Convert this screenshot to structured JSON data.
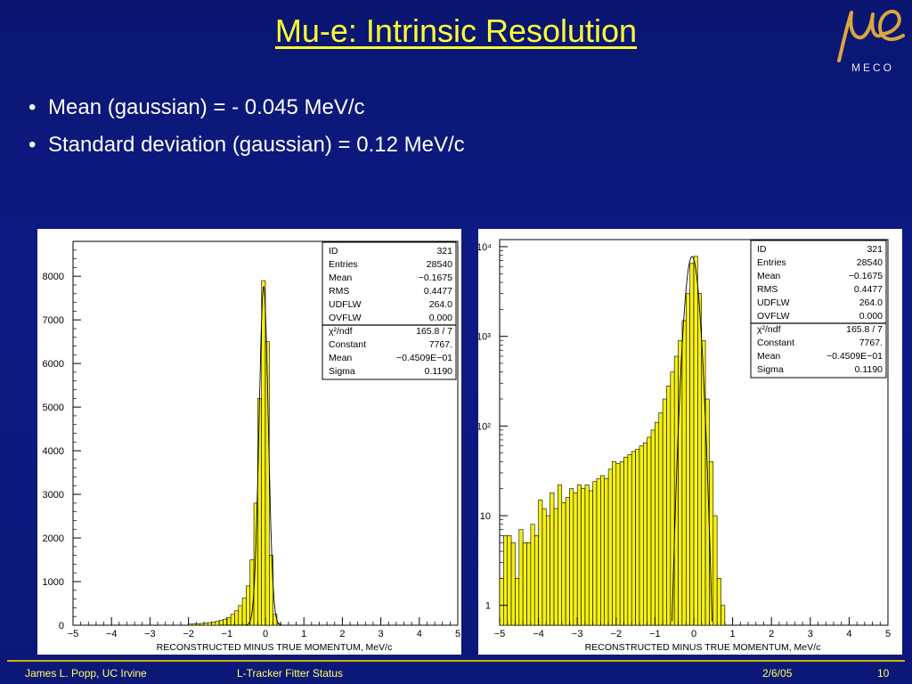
{
  "slide": {
    "title": "Mu-e: Intrinsic Resolution",
    "logo_caption": "MECO",
    "bullets": [
      "Mean (gaussian) = - 0.045 MeV/c",
      "Standard deviation (gaussian) = 0.12 MeV/c"
    ]
  },
  "footer": {
    "author": "James L. Popp, UC Irvine",
    "talk": "L-Tracker Fitter Status",
    "date": "2/6/05",
    "page": "10"
  },
  "colors": {
    "background": "#0c1878",
    "title": "#ffff33",
    "histogram_fill": "#f5f011",
    "footer_text": "#ffff66"
  },
  "stats_box": [
    [
      "ID",
      "321"
    ],
    [
      "Entries",
      "28540"
    ],
    [
      "Mean",
      "−0.1675"
    ],
    [
      "RMS",
      "0.4477"
    ],
    [
      "UDFLW",
      "264.0"
    ],
    [
      "OVFLW",
      "0.000"
    ],
    [
      "χ²/ndf",
      "165.8    /    7"
    ],
    [
      "Constant",
      "7767."
    ],
    [
      "Mean",
      "−0.4509E−01"
    ],
    [
      "Sigma",
      "0.1190"
    ]
  ],
  "chart_data": [
    {
      "type": "bar",
      "scale": "linear",
      "xlabel": "RECONSTRUCTED MINUS TRUE MOMENTUM,    MeV/c",
      "xlim": [
        -5,
        5
      ],
      "ylim": [
        0,
        8800
      ],
      "x_ticks": [
        "−5",
        "−4",
        "−3",
        "−2",
        "−1",
        "0",
        "1",
        "2",
        "3",
        "4",
        "5"
      ],
      "y_ticks": [
        "0",
        "1000",
        "2000",
        "3000",
        "4000",
        "5000",
        "6000",
        "7000",
        "8000"
      ],
      "bin_width": 0.1,
      "x": [
        -2.0,
        -1.9,
        -1.8,
        -1.7,
        -1.6,
        -1.5,
        -1.4,
        -1.3,
        -1.2,
        -1.1,
        -1.0,
        -0.9,
        -0.8,
        -0.7,
        -0.6,
        -0.5,
        -0.4,
        -0.3,
        -0.2,
        -0.1,
        0.0,
        0.1,
        0.2,
        0.3
      ],
      "values": [
        25,
        30,
        35,
        40,
        50,
        60,
        75,
        90,
        110,
        140,
        180,
        250,
        330,
        450,
        620,
        900,
        1500,
        2800,
        5200,
        7900,
        6500,
        1600,
        250,
        40
      ],
      "gaussian_fit": {
        "constant": 7767,
        "mean": -0.04509,
        "sigma": 0.119
      }
    },
    {
      "type": "bar",
      "scale": "log",
      "xlabel": "RECONSTRUCTED MINUS TRUE MOMENTUM,    MeV/c",
      "xlim": [
        -5,
        5
      ],
      "ylim": [
        0.6,
        12000
      ],
      "x_ticks": [
        "−5",
        "−4",
        "−3",
        "−2",
        "−1",
        "0",
        "1",
        "2",
        "3",
        "4",
        "5"
      ],
      "y_ticks": [
        "1",
        "10",
        "10²",
        "10³",
        "10⁴"
      ],
      "bin_width": 0.1,
      "x": [
        -5.0,
        -4.9,
        -4.8,
        -4.7,
        -4.6,
        -4.5,
        -4.4,
        -4.3,
        -4.2,
        -4.1,
        -4.0,
        -3.9,
        -3.8,
        -3.7,
        -3.6,
        -3.5,
        -3.4,
        -3.3,
        -3.2,
        -3.1,
        -3.0,
        -2.9,
        -2.8,
        -2.7,
        -2.6,
        -2.5,
        -2.4,
        -2.3,
        -2.2,
        -2.1,
        -2.0,
        -1.9,
        -1.8,
        -1.7,
        -1.6,
        -1.5,
        -1.4,
        -1.3,
        -1.2,
        -1.1,
        -1.0,
        -0.9,
        -0.8,
        -0.7,
        -0.6,
        -0.5,
        -0.4,
        -0.3,
        -0.2,
        -0.1,
        0.0,
        0.1,
        0.2,
        0.3,
        0.4,
        0.5,
        0.6,
        0.7
      ],
      "values": [
        2,
        6,
        6,
        5,
        2,
        7,
        5,
        5,
        8,
        6,
        15,
        12,
        10,
        18,
        12,
        22,
        14,
        16,
        20,
        18,
        22,
        20,
        22,
        19,
        24,
        26,
        28,
        26,
        33,
        40,
        38,
        40,
        45,
        48,
        52,
        55,
        60,
        65,
        75,
        90,
        110,
        140,
        200,
        280,
        400,
        600,
        900,
        1500,
        3000,
        6500,
        7800,
        3000,
        900,
        200,
        40,
        10,
        2,
        1
      ],
      "gaussian_fit": {
        "constant": 7767,
        "mean": -0.04509,
        "sigma": 0.119
      }
    }
  ]
}
